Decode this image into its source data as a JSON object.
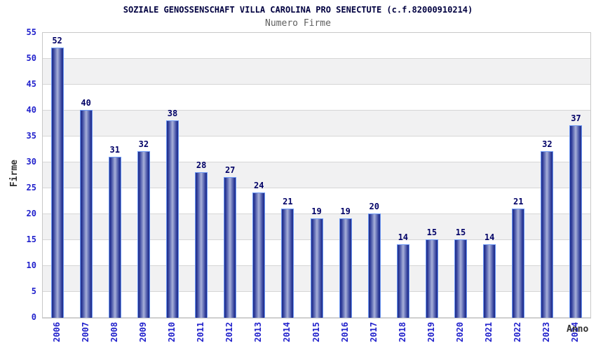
{
  "title": "SOZIALE GENOSSENSCHAFT VILLA CAROLINA PRO SENECTUTE (c.f.82000910214)",
  "subtitle": "Numero Firme",
  "chart_data": {
    "type": "bar",
    "categories": [
      "2006",
      "2007",
      "2008",
      "2009",
      "2010",
      "2011",
      "2012",
      "2013",
      "2014",
      "2015",
      "2016",
      "2017",
      "2018",
      "2019",
      "2020",
      "2021",
      "2022",
      "2023",
      "2024"
    ],
    "values": [
      52,
      40,
      31,
      32,
      38,
      28,
      27,
      24,
      21,
      19,
      19,
      20,
      14,
      15,
      15,
      14,
      21,
      32,
      37
    ],
    "title": "Numero Firme",
    "xlabel": "Anno",
    "ylabel": "Firme",
    "ylim": [
      0,
      55
    ],
    "ytick_step": 5,
    "grid": "horizontal bands every 5 units, alternating white and light gray",
    "legend": "none"
  },
  "colors": {
    "title_text": "#000040",
    "subtitle_text": "#5f5f5f",
    "axis_tick_text": "#2222cc",
    "bar_value_text": "#000066",
    "axis_title_text": "#333333",
    "bar_edge": "#1f2d8a",
    "bar_center": "#a9b1da",
    "bar_outline": "#6c97f3",
    "band_gray": "#f1f1f2",
    "gridline": "#d6d6d6",
    "plot_border": "#c8c8c8",
    "background": "#ffffff"
  }
}
